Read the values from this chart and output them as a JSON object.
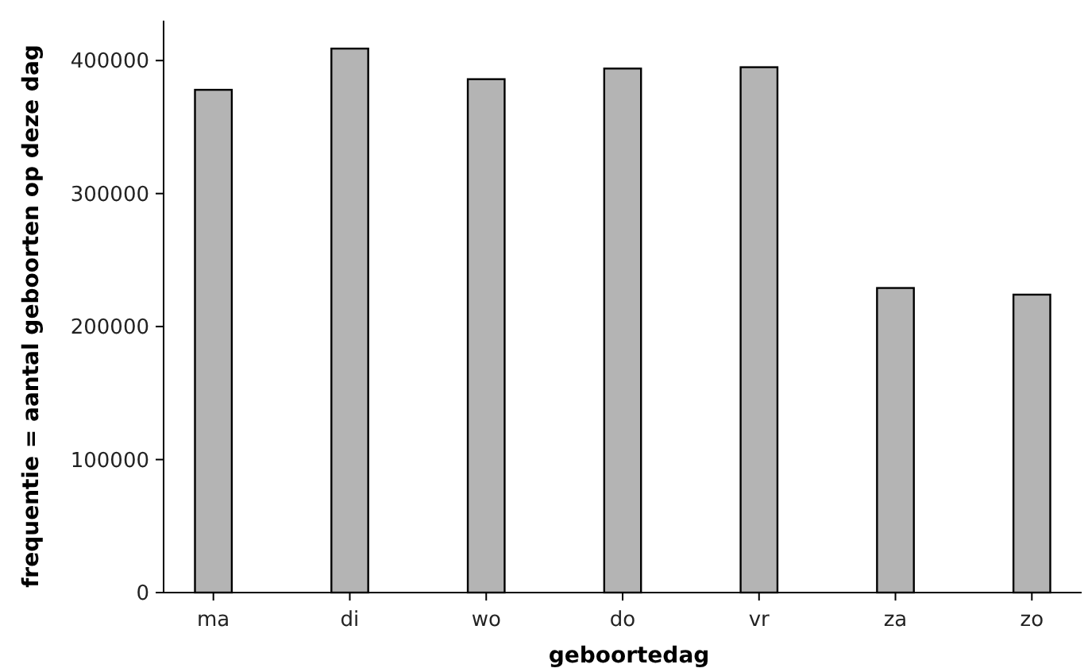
{
  "chart_data": {
    "type": "bar",
    "xlabel": "geboortedag",
    "ylabel": "frequentie = aantal geboorten op deze dag",
    "categories": [
      "ma",
      "di",
      "wo",
      "do",
      "vr",
      "za",
      "zo"
    ],
    "values": [
      378000,
      409000,
      386000,
      394000,
      395000,
      229000,
      224000
    ],
    "color": "#b4b4b4",
    "ylim": [
      0,
      430000
    ],
    "yticks": [
      0,
      100000,
      200000,
      300000,
      400000
    ],
    "grid": false
  }
}
